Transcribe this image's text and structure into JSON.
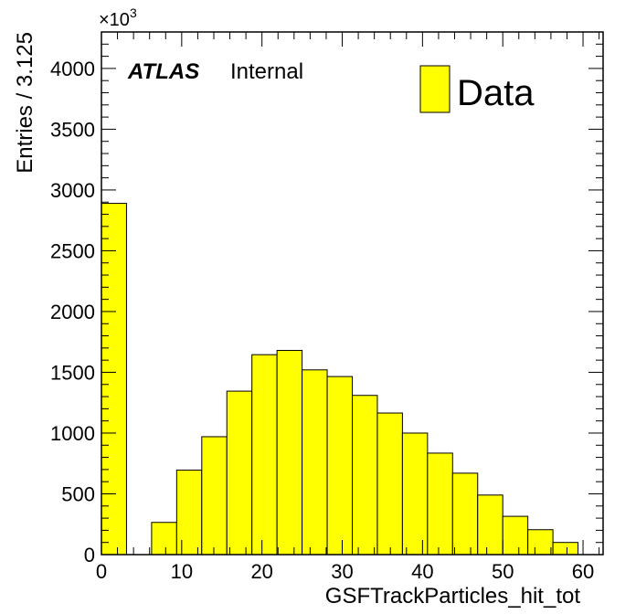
{
  "chart_data": {
    "type": "bar",
    "title": "",
    "xlabel": "GSFTrackParticles_hit_tot",
    "ylabel": "Entries / 3.125",
    "y_multiplier_label": "×10",
    "y_multiplier_exponent": "3",
    "xlim": [
      0,
      62.5
    ],
    "ylim": [
      0,
      4300
    ],
    "bin_width": 3.125,
    "x_ticks": [
      0,
      10,
      20,
      30,
      40,
      50,
      60
    ],
    "y_ticks": [
      0,
      500,
      1000,
      1500,
      2000,
      2500,
      3000,
      3500,
      4000
    ],
    "grid": false,
    "bar_color": "#ffff00",
    "series": [
      {
        "name": "Data",
        "bin_edges": [
          0,
          3.125,
          6.25,
          9.375,
          12.5,
          15.625,
          18.75,
          21.875,
          25,
          28.125,
          31.25,
          34.375,
          37.5,
          40.625,
          43.75,
          46.875,
          50,
          53.125,
          56.25,
          59.375
        ],
        "values": [
          2890,
          0,
          265,
          695,
          970,
          1345,
          1645,
          1680,
          1520,
          1465,
          1310,
          1165,
          1000,
          835,
          670,
          490,
          315,
          205,
          100
        ]
      }
    ],
    "labels": {
      "atlas": "ATLAS",
      "internal": "Internal"
    },
    "legend": {
      "placement": "top-right",
      "entries": [
        "Data"
      ]
    }
  }
}
